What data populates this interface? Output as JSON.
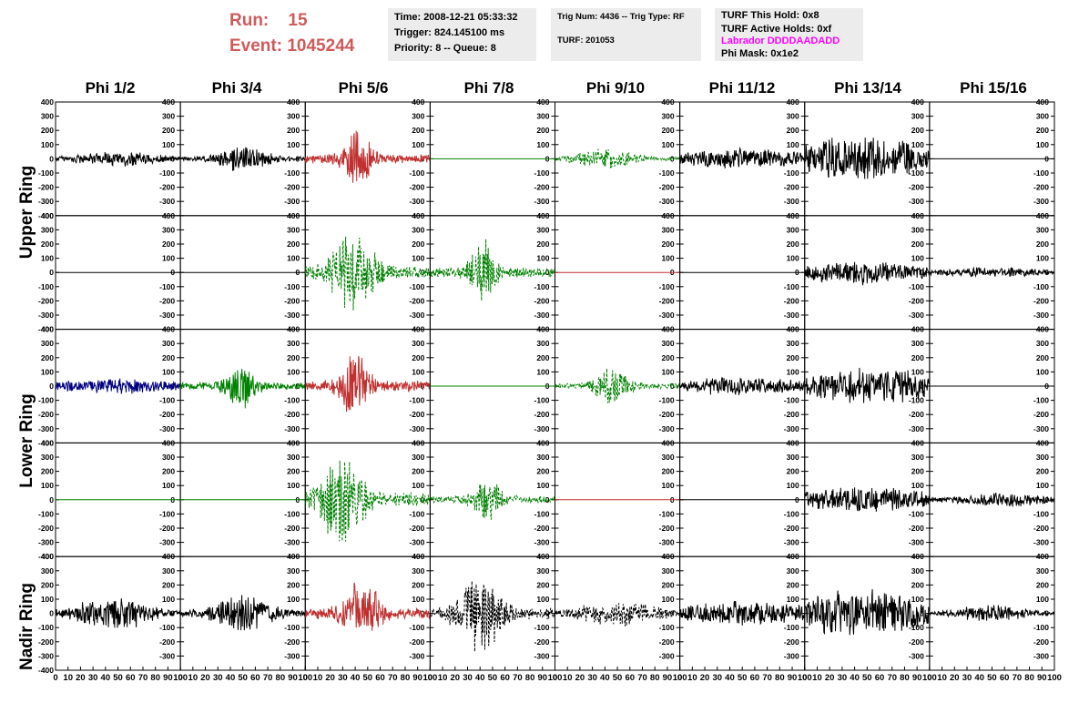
{
  "header": {
    "run_label": "Run:",
    "run_value": "15",
    "event_label": "Event:",
    "event_value": "1045244",
    "time": "Time: 2008-12-21 05:33:32",
    "trigger": "Trigger: 824.145100 ms",
    "priority": "Priority: 8 -- Queue: 8",
    "trig_num": "Trig Num: 4436 -- Trig Type: RF",
    "turf": "TURF: 201053",
    "turf_hold": "TURF This Hold: 0x8",
    "turf_active": "TURF Active Holds: 0xf",
    "labrador": "Labrador DDDDAADADD",
    "phi_mask": "Phi Mask: 0x1e2",
    "labrador_color": "#ff00ff",
    "run_color": "#d05a5a"
  },
  "columns": [
    "Phi 1/2",
    "Phi 3/4",
    "Phi 5/6",
    "Phi 7/8",
    "Phi 9/10",
    "Phi 11/12",
    "Phi 13/14",
    "Phi 15/16"
  ],
  "ring_labels": [
    "Upper Ring",
    "Lower Ring",
    "Nadir Ring"
  ],
  "chart_data": {
    "type": "line",
    "description_of_axes": "Grid of 5 rows x 8 columns of waveform panels",
    "xlim": [
      0,
      100
    ],
    "ylim": [
      -400,
      400
    ],
    "y_ticks": [
      -300,
      -200,
      -100,
      0,
      100,
      200,
      300,
      400
    ],
    "x_ticks": [
      0,
      10,
      20,
      30,
      40,
      50,
      60,
      70,
      80,
      90,
      100
    ],
    "rows": [
      {
        "panels": [
          {
            "color": "#000000",
            "style": "solid",
            "amp": 60,
            "center": 50,
            "spread": 40
          },
          {
            "color": "#000000",
            "style": "solid",
            "amp": 110,
            "center": 50,
            "spread": 20
          },
          {
            "color": "#c03030",
            "style": "solid",
            "amp": 230,
            "center": 42,
            "spread": 12
          },
          {
            "color": "#008000",
            "style": "flat",
            "amp": 0,
            "center": 50,
            "spread": 30
          },
          {
            "color": "#008000",
            "style": "dashed",
            "amp": 80,
            "center": 40,
            "spread": 25
          },
          {
            "color": "#000000",
            "style": "solid",
            "amp": 80,
            "center": 50,
            "spread": 60
          },
          {
            "color": "#000000",
            "style": "solid",
            "amp": 200,
            "center": 45,
            "spread": 50
          },
          {
            "color": "#000000",
            "style": "flat",
            "amp": 0,
            "center": 50,
            "spread": 30
          }
        ]
      },
      {
        "panels": [
          {
            "color": "#000000",
            "style": "flat",
            "amp": 0,
            "center": 50,
            "spread": 30
          },
          {
            "color": "#000000",
            "style": "flat",
            "amp": 0,
            "center": 50,
            "spread": 30
          },
          {
            "color": "#008000",
            "style": "dashed",
            "amp": 330,
            "center": 38,
            "spread": 18
          },
          {
            "color": "#008000",
            "style": "dashed",
            "amp": 270,
            "center": 42,
            "spread": 10
          },
          {
            "color": "#c03030",
            "style": "flat",
            "amp": 0,
            "center": 50,
            "spread": 30
          },
          {
            "color": "#000000",
            "style": "flat",
            "amp": 0,
            "center": 50,
            "spread": 30
          },
          {
            "color": "#000000",
            "style": "solid",
            "amp": 100,
            "center": 45,
            "spread": 50
          },
          {
            "color": "#000000",
            "style": "solid",
            "amp": 40,
            "center": 50,
            "spread": 50
          }
        ]
      },
      {
        "panels": [
          {
            "color": "#000080",
            "style": "solid",
            "amp": 60,
            "center": 50,
            "spread": 60
          },
          {
            "color": "#008000",
            "style": "solid",
            "amp": 180,
            "center": 48,
            "spread": 12
          },
          {
            "color": "#c03030",
            "style": "solid",
            "amp": 280,
            "center": 40,
            "spread": 12
          },
          {
            "color": "#008000",
            "style": "flat",
            "amp": 0,
            "center": 50,
            "spread": 30
          },
          {
            "color": "#008000",
            "style": "dashed",
            "amp": 150,
            "center": 45,
            "spread": 15
          },
          {
            "color": "#000000",
            "style": "solid",
            "amp": 70,
            "center": 50,
            "spread": 60
          },
          {
            "color": "#000000",
            "style": "solid",
            "amp": 140,
            "center": 55,
            "spread": 60
          },
          {
            "color": "#000000",
            "style": "flat",
            "amp": 0,
            "center": 50,
            "spread": 30
          }
        ]
      },
      {
        "panels": [
          {
            "color": "#008000",
            "style": "flat",
            "amp": 0,
            "center": 50,
            "spread": 30
          },
          {
            "color": "#008000",
            "style": "flat",
            "amp": 0,
            "center": 50,
            "spread": 30
          },
          {
            "color": "#008000",
            "style": "dashed",
            "amp": 350,
            "center": 30,
            "spread": 18
          },
          {
            "color": "#008000",
            "style": "dashed",
            "amp": 180,
            "center": 45,
            "spread": 12
          },
          {
            "color": "#c03030",
            "style": "flat",
            "amp": 0,
            "center": 50,
            "spread": 30
          },
          {
            "color": "#000000",
            "style": "flat",
            "amp": 0,
            "center": 50,
            "spread": 30
          },
          {
            "color": "#000000",
            "style": "solid",
            "amp": 100,
            "center": 50,
            "spread": 60
          },
          {
            "color": "#000000",
            "style": "solid",
            "amp": 60,
            "center": 55,
            "spread": 40
          }
        ]
      },
      {
        "panels": [
          {
            "color": "#000000",
            "style": "solid",
            "amp": 140,
            "center": 45,
            "spread": 30
          },
          {
            "color": "#000000",
            "style": "solid",
            "amp": 150,
            "center": 50,
            "spread": 25
          },
          {
            "color": "#c03030",
            "style": "solid",
            "amp": 280,
            "center": 45,
            "spread": 15
          },
          {
            "color": "#000000",
            "style": "dashed",
            "amp": 290,
            "center": 40,
            "spread": 18
          },
          {
            "color": "#000000",
            "style": "dashed",
            "amp": 100,
            "center": 50,
            "spread": 35
          },
          {
            "color": "#000000",
            "style": "solid",
            "amp": 100,
            "center": 50,
            "spread": 60
          },
          {
            "color": "#000000",
            "style": "solid",
            "amp": 180,
            "center": 45,
            "spread": 60
          },
          {
            "color": "#000000",
            "style": "solid",
            "amp": 70,
            "center": 50,
            "spread": 30
          }
        ]
      }
    ]
  }
}
